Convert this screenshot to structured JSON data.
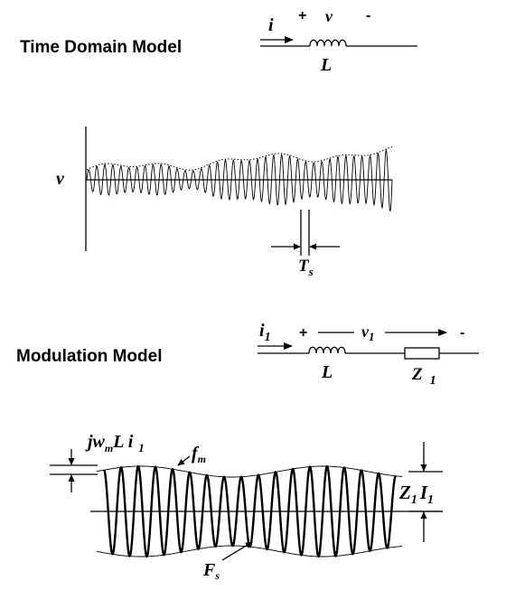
{
  "time_domain": {
    "heading": "Time Domain Model",
    "current_label": "i",
    "plus": "+",
    "voltage_label": "v",
    "minus": "-",
    "inductor_label": "L",
    "waveform_axis_label": "v",
    "period_label": "T",
    "period_sub": "s"
  },
  "modulation": {
    "heading": "Modulation Model",
    "current_label": "i",
    "current_sub": "1",
    "plus": "+",
    "voltage_label": "v",
    "voltage_sub": "1",
    "minus": "-",
    "inductor_label": "L",
    "impedance_label": "Z",
    "impedance_sub": "1",
    "left_annot_1": "jw",
    "left_annot_sub": "m",
    "left_annot_2": "L i",
    "left_annot_sub2": "1",
    "envelope_label": "f",
    "envelope_sub": "m",
    "carrier_label": "F",
    "carrier_sub": "s",
    "right_annot_1": "Z",
    "right_annot_sub1": "1",
    "right_annot_2": "I",
    "right_annot_sub2": "1"
  }
}
